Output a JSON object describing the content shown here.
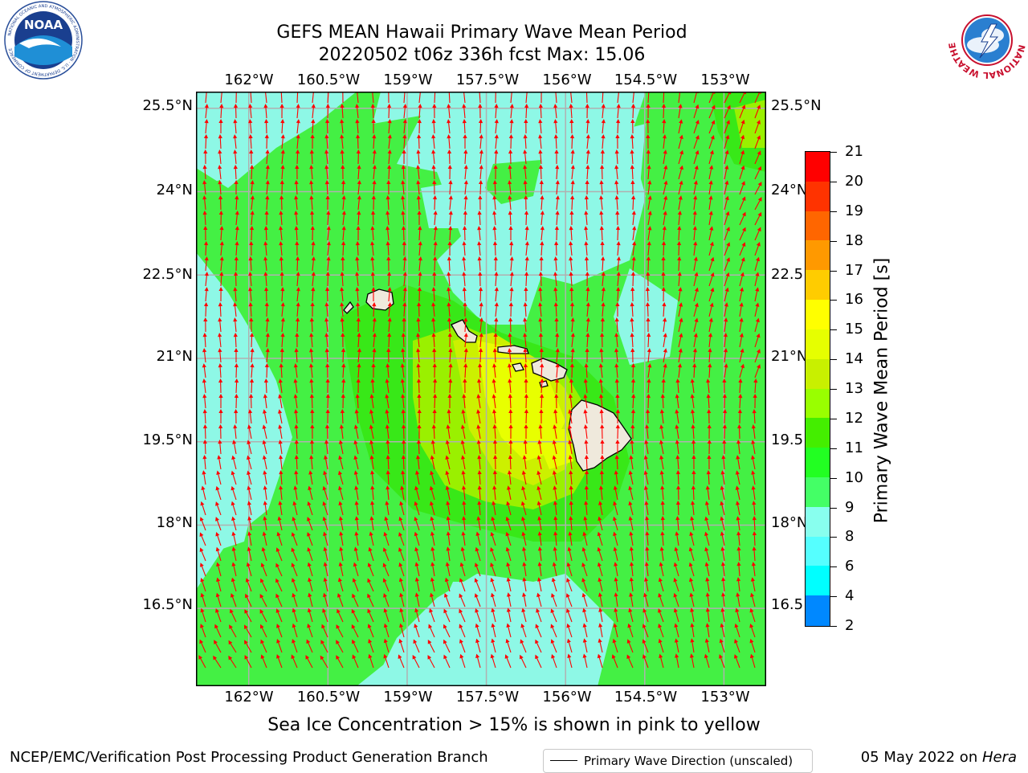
{
  "header": {
    "title_line1": "GEFS MEAN Hawaii Primary Wave Mean Period",
    "title_line2": "20220502 t06z 336h fcst   Max: 15.06"
  },
  "logos": {
    "left": {
      "name": "noaa-logo",
      "text": "NOAA",
      "ring_text": "NATIONAL OCEANIC AND ATMOSPHERIC ADMINISTRATION · U.S. DEPARTMENT OF COMMERCE"
    },
    "right": {
      "name": "nws-logo",
      "ring_text": "NATIONAL WEATHER SERVICE"
    }
  },
  "map": {
    "lon_labels": [
      "162°W",
      "160.5°W",
      "159°W",
      "157.5°W",
      "156°W",
      "154.5°W",
      "153°W"
    ],
    "lat_labels_left": [
      "25.5°N",
      "24°N",
      "22.5°N",
      "21°N",
      "19.5°N",
      "18°N",
      "16.5°N"
    ],
    "lat_labels_right": [
      "25.5°N",
      "24°N",
      "22.5",
      "21°N",
      "19.5",
      "18°N",
      "16.5"
    ],
    "lon_range": [
      -163,
      -152.2
    ],
    "lat_range": [
      15.1,
      25.8
    ],
    "arrow_color": "#ff0000",
    "grid_color": "#b0b0b0",
    "land_color": "#efe9dc",
    "legend_label": "Primary Wave Direction (unscaled)"
  },
  "colorbar": {
    "title": "Primary Wave Mean Period [s]",
    "ticks": [
      "21",
      "20",
      "19",
      "18",
      "17",
      "16",
      "15",
      "14",
      "13",
      "12",
      "11",
      "10",
      "9",
      "8",
      "6",
      "4",
      "2"
    ],
    "colors": [
      "#ff0000",
      "#ff3300",
      "#ff6600",
      "#ff9900",
      "#ffcc00",
      "#ffff00",
      "#e6ff00",
      "#c8f000",
      "#99ff00",
      "#44ee00",
      "#22ff22",
      "#44ff66",
      "#88ffee",
      "#55ffff",
      "#00ffff",
      "#0088ff",
      "#0000ff"
    ]
  },
  "notes": {
    "sea_ice": "Sea Ice Concentration > 15% is shown in pink to yellow"
  },
  "footer": {
    "left": "NCEP/EMC/Verification Post Processing Product Generation Branch",
    "date": "05 May 2022 on ",
    "host": "Hera"
  }
}
